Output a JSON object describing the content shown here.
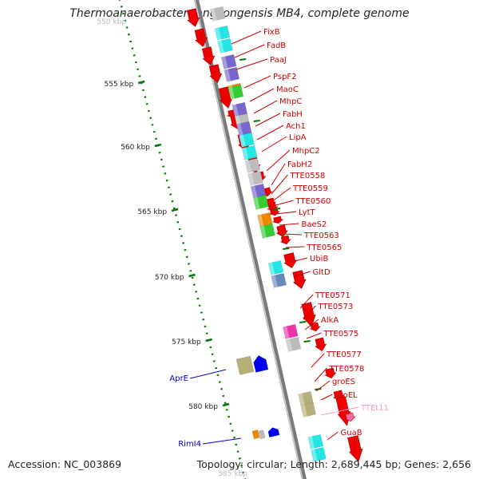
{
  "title": "Thermoanaerobacter tengcongensis MB4, complete genome",
  "accession": "Accession: NC_003869",
  "summary": "Topology: circular; Length: 2,689,445 bp; Genes: 2,656",
  "colors": {
    "backbone": "#9a9a9a",
    "forward_gene": "#ee0000",
    "label_red": "#cc0000",
    "label_blue": "#0000cc",
    "label_pink": "#ff99bb",
    "tick": "#007700",
    "cog_cyan": "#22e6e6",
    "cog_purple": "#7766cc",
    "cog_grey": "#bbbbbb",
    "cog_green": "#33cc33",
    "cog_orange": "#ee8800",
    "cog_olive": "#b5b07a",
    "cog_magenta": "#ee33aa",
    "cog_steel": "#6688bb",
    "cog_blue": "#0000ee"
  },
  "ticks": [
    "555 kbp",
    "560 kbp",
    "565 kbp",
    "570 kbp",
    "575 kbp",
    "580 kbp"
  ],
  "tick_top_fragment": "550 kbp",
  "tick_bottom_fragment": "585 kbp",
  "right_labels": [
    "FixB",
    "FadB",
    "PaaJ",
    "PspF2",
    "MaoC",
    "MhpC",
    "FabH",
    "Ach1",
    "LipA",
    "MhpC2",
    "FabH2",
    "TTE0558",
    "TTE0559",
    "TTE0560",
    "LytT",
    "BaeS2",
    "TTE0563",
    "TTE0565",
    "UbiB",
    "GltD",
    "TTE0571",
    "TTE0573",
    "AlkA",
    "TTE0575",
    "TTE0577",
    "TTE0578",
    "groES",
    "groEL",
    "TTEt11",
    "GuaB"
  ],
  "left_labels": [
    "AprE",
    "RimI4"
  ]
}
